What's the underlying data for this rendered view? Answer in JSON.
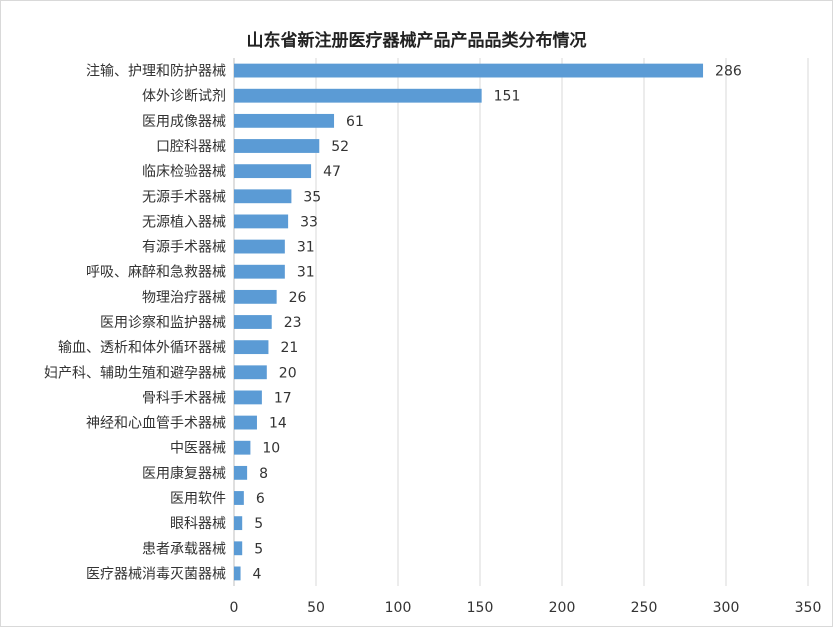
{
  "chart_data": {
    "type": "bar",
    "orientation": "horizontal",
    "title": "山东省新注册医疗器械产品产品品类分布情况",
    "categories": [
      "注输、护理和防护器械",
      "体外诊断试剂",
      "医用成像器械",
      "口腔科器械",
      "临床检验器械",
      "无源手术器械",
      "无源植入器械",
      "有源手术器械",
      "呼吸、麻醉和急救器械",
      "物理治疗器械",
      "医用诊察和监护器械",
      "输血、透析和体外循环器械",
      "妇产科、辅助生殖和避孕器械",
      "骨科手术器械",
      "神经和心血管手术器械",
      "中医器械",
      "医用康复器械",
      "医用软件",
      "眼科器械",
      "患者承载器械",
      "医疗器械消毒灭菌器械"
    ],
    "values": [
      286,
      151,
      61,
      52,
      47,
      35,
      33,
      31,
      31,
      26,
      23,
      21,
      20,
      17,
      14,
      10,
      8,
      6,
      5,
      5,
      4
    ],
    "xlim": [
      0,
      350
    ],
    "xticks": [
      0,
      50,
      100,
      150,
      200,
      250,
      300,
      350
    ],
    "bar_color": "#5b9bd5",
    "grid": "vertical"
  }
}
